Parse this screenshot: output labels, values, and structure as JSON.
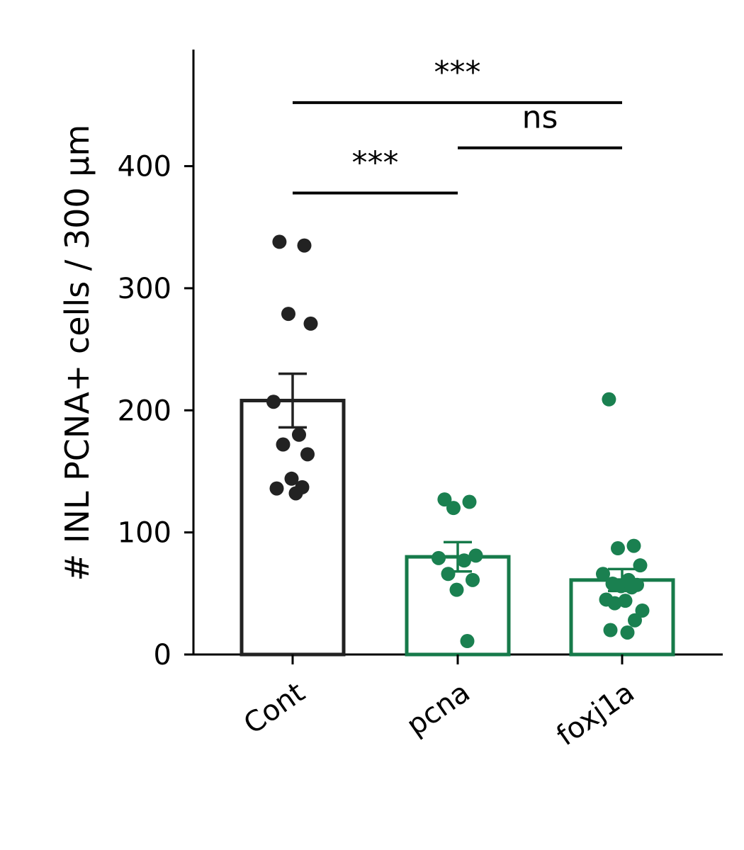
{
  "chart_data": {
    "type": "bar",
    "xlabel": "",
    "ylabel": "# INL PCNA+ cells / 300 µm",
    "ylim": [
      0,
      495
    ],
    "yticks": [
      0,
      100,
      200,
      300,
      400
    ],
    "grid": false,
    "categories": [
      "Cont",
      "pcna",
      "foxj1a"
    ],
    "values": [
      208,
      80,
      61
    ],
    "error": [
      22,
      12,
      9
    ],
    "colors": [
      "#222222",
      "#167a4a",
      "#167a4a"
    ],
    "points_color": [
      "#222222",
      "#1a8050",
      "#1a8050"
    ],
    "points": [
      [
        338,
        335,
        279,
        271,
        207,
        180,
        172,
        164,
        144,
        137,
        136,
        132
      ],
      [
        127,
        125,
        120,
        81,
        79,
        77,
        66,
        61,
        53,
        11
      ],
      [
        209,
        89,
        87,
        73,
        66,
        61,
        58,
        57,
        56,
        55,
        45,
        44,
        42,
        36,
        28,
        20,
        18
      ]
    ],
    "significance": [
      {
        "from": 0,
        "to": 1,
        "label": "***",
        "y": 378
      },
      {
        "from": 1,
        "to": 2,
        "label": "ns",
        "y": 415
      },
      {
        "from": 0,
        "to": 2,
        "label": "***",
        "y": 452
      }
    ]
  }
}
